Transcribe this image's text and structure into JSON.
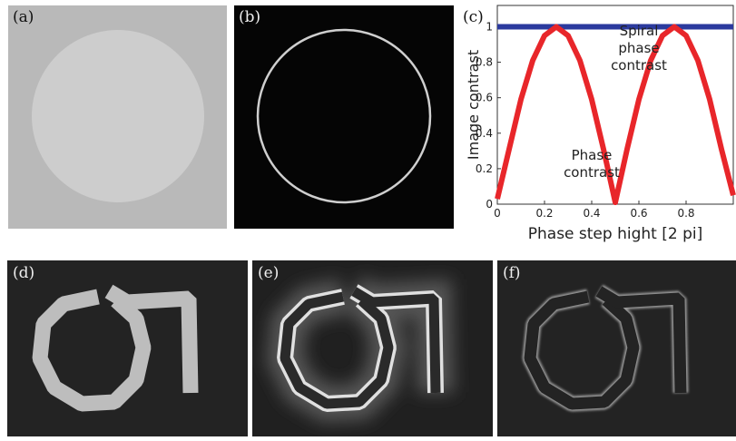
{
  "panels": [
    {
      "label": "(a)"
    },
    {
      "label": "(b)"
    },
    {
      "label": "(c)"
    },
    {
      "label": "(d)"
    },
    {
      "label": "(e)"
    },
    {
      "label": "(f)"
    }
  ],
  "chart_data": {
    "type": "line",
    "x_label": "Phase step hight [2 pi]",
    "y_label": "Image contrast",
    "annotations": [
      {
        "lines": [
          "Spiral",
          "phase",
          "contrast"
        ],
        "x": 0.6,
        "y": 0.95
      },
      {
        "lines": [
          "Phase",
          "contrast"
        ],
        "x": 0.4,
        "y": 0.25
      }
    ],
    "xlim": [
      0,
      1
    ],
    "ylim": [
      0,
      1.12
    ],
    "xticks": [
      0,
      0.2,
      0.4,
      0.6,
      0.8
    ],
    "yticks": [
      0,
      0.2,
      0.4,
      0.6,
      0.8,
      1
    ],
    "series": [
      {
        "color": "#2b3a9e",
        "x": [
          0,
          1
        ],
        "values": [
          1,
          1
        ]
      },
      {
        "color": "#e8262a",
        "x": [
          0,
          0.05,
          0.1,
          0.15,
          0.2,
          0.25,
          0.3,
          0.35,
          0.4,
          0.45,
          0.5,
          0.55,
          0.6,
          0.65,
          0.7,
          0.75,
          0.8,
          0.85,
          0.9,
          0.95,
          1
        ],
        "values": [
          0.03,
          0.31,
          0.59,
          0.81,
          0.95,
          1,
          0.95,
          0.81,
          0.59,
          0.31,
          0.01,
          0.31,
          0.59,
          0.81,
          0.95,
          1,
          0.95,
          0.81,
          0.59,
          0.31,
          0.05
        ]
      }
    ]
  }
}
